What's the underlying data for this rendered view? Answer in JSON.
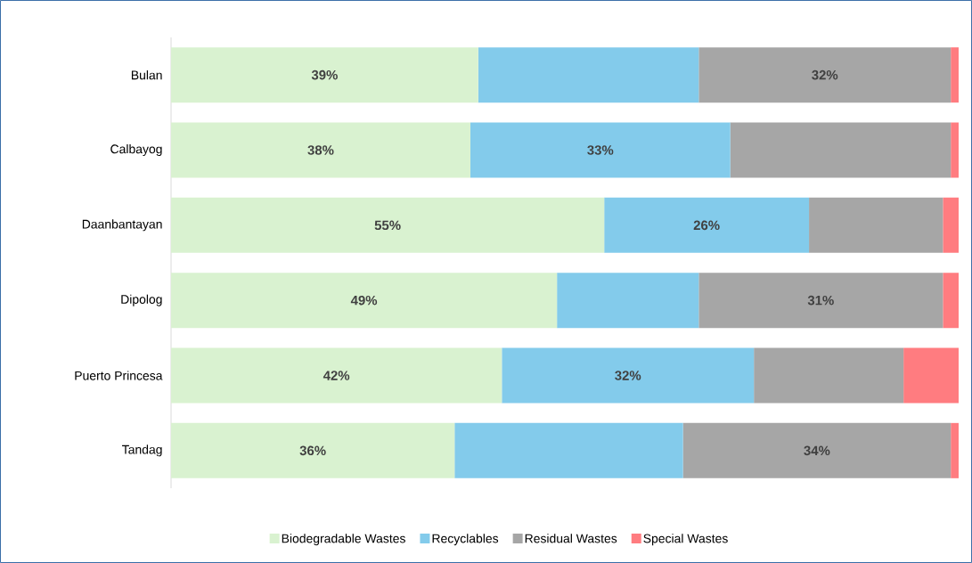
{
  "chart_data": {
    "type": "bar",
    "orientation": "horizontal",
    "stacked": true,
    "legend": "bottom",
    "xlim": [
      0,
      100
    ],
    "categories": [
      "Bulan",
      "Calbayog",
      "Daanbantayan",
      "Dipolog",
      "Puerto Princesa",
      "Tandag"
    ],
    "series": [
      {
        "name": "Biodegradable Wastes",
        "color": "#d9f2d0",
        "values": [
          39,
          38,
          55,
          49,
          42,
          36
        ],
        "value_labels": [
          "39%",
          "38%",
          "55%",
          "49%",
          "42%",
          "36%"
        ]
      },
      {
        "name": "Recyclables",
        "color": "#83cbeb",
        "values": [
          28,
          33,
          26,
          18,
          32,
          29
        ],
        "value_labels": [
          null,
          "33%",
          "26%",
          null,
          "32%",
          null
        ]
      },
      {
        "name": "Residual Wastes",
        "color": "#a6a6a6",
        "values": [
          32,
          28,
          17,
          31,
          19,
          34
        ],
        "value_labels": [
          "32%",
          null,
          null,
          "31%",
          null,
          "34%"
        ]
      },
      {
        "name": "Special Wastes",
        "color": "#ff7c80",
        "values": [
          1,
          1,
          2,
          2,
          7,
          1
        ],
        "value_labels": [
          null,
          null,
          null,
          null,
          null,
          null
        ]
      }
    ]
  }
}
